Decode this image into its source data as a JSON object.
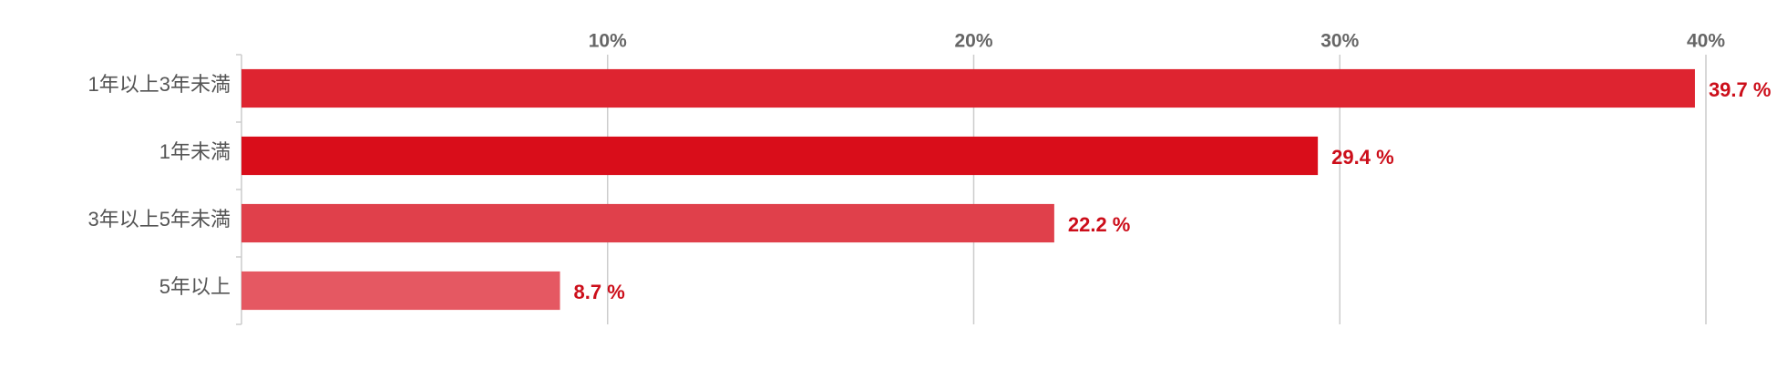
{
  "chart_data": {
    "type": "bar",
    "orientation": "horizontal",
    "categories": [
      "1年以上3年未満",
      "1年未満",
      "3年以上5年未満",
      "5年以上"
    ],
    "values": [
      39.7,
      29.4,
      22.2,
      8.7
    ],
    "value_labels": [
      "39.7 %",
      "29.4 %",
      "22.2 %",
      "8.7 %"
    ],
    "colors": [
      "#de2430",
      "#d90d1a",
      "#e0404b",
      "#e55862"
    ],
    "label_color": "#cc0e1a",
    "xlim": [
      0,
      40
    ],
    "xticks": [
      {
        "value": 10,
        "label": "10%"
      },
      {
        "value": 20,
        "label": "20%"
      },
      {
        "value": 30,
        "label": "30%"
      },
      {
        "value": 40,
        "label": "40%"
      }
    ],
    "grid": true
  }
}
